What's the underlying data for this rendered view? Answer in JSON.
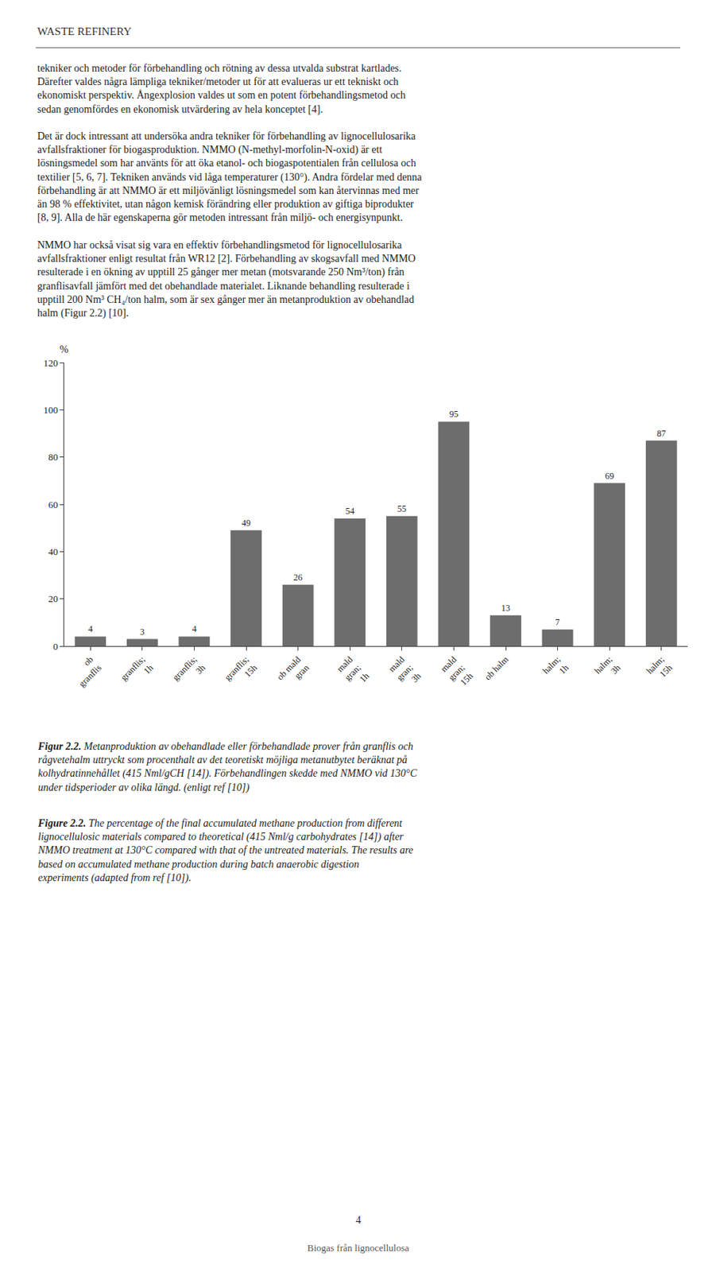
{
  "chart_data": {
    "type": "bar",
    "title": "WASTE REFINERY",
    "ylabel": "%",
    "categories": [
      "ob\ngranflis",
      "granflis;\n1h",
      "granflis;\n3h",
      "granflis;\n15h",
      "ob mald\ngran",
      "mald\ngran;\n1h",
      "mald\ngran;\n3h",
      "mald\ngran;\n15h",
      "ob halm",
      "halm;\n1h",
      "halm;\n3h",
      "halm;\n15h"
    ],
    "values": [
      4,
      3,
      4,
      49,
      26,
      54,
      55,
      95,
      13,
      7,
      69,
      87
    ],
    "color": "#6d6d6d",
    "ylim": [
      0,
      120
    ],
    "yticks": [
      0,
      20,
      40,
      60,
      80,
      100,
      120
    ],
    "grid": false,
    "data_labels": true,
    "annotations": [
      "tekniker och metoder för förbehandling och rötning av dessa utvalda substrat kartlades.\nDärefter valdes några lämpliga tekniker/metoder ut för att evalueras ur ett tekniskt och\nekonomiskt perspektiv. Ångexplosion valdes ut som en potent förbehandlingsmetod och\nsedan genomfördes en ekonomisk utvärdering av hela konceptet [4].",
      "Det är dock intressant att undersöka andra tekniker för förbehandling av lignocellulosarika\navfallsfraktioner för biogasproduktion. NMMO (N-methyl-morfolin-N-oxid) är ett\nlösningsmedel som har använts för att öka etanol- och biogaspotentialen från cellulosa och\ntextilier [5, 6, 7]. Tekniken används vid låga temperaturer (130°). Andra fördelar med denna\nförbehandling är att NMMO är ett miljövänligt lösningsmedel som kan återvinnas med mer\nän 98 % effektivitet, utan någon kemisk förändring eller produktion av giftiga biprodukter\n[8, 9]. Alla de här egenskaperna gör metoden intressant från miljö- och energisynpunkt.",
      "NMMO har också visat sig vara en effektiv förbehandlingsmetod för lignocellulosarika\navfallsfraktioner enligt resultat från WR12 [2]. Förbehandling av skogsavfall med NMMO\nresulterade i en ökning av upptill 25 gånger mer metan (motsvarande 250 Nm³/ton) från\ngranflisavfall jämfört med det obehandlade materialet. Liknande behandling resulterade i\nupptill 200 Nm³ CH₄/ton halm, som är sex gånger mer än metanproduktion av obehandlad\nhalm (Figur 2.2) [10].",
      "Figur 2.2.",
      "Metanproduktion av obehandlade eller förbehandlade prover från granflis och\nrågvetehalm uttryckt som procenthalt av det teoretiskt möjliga metanutbytet beräknat på\nkolhydratinnehållet (415 Nml/gCH [14]). Förbehandlingen skedde med NMMO vid 130°C\nunder tidsperioder av olika längd. (enligt ref [10])",
      "Figure 2.2.",
      "The percentage of the final accumulated methane production from different\nlignocellulosic materials compared to theoretical (415 Nml/g carbohydrates [14]) after\nNMMO treatment at 130°C compared with that of the untreated materials. The results are\nbased on accumulated methane production during batch anaerobic digestion\nexperiments (adapted from ref [10]).",
      "4",
      "Biogas från lignocellulosa"
    ]
  }
}
